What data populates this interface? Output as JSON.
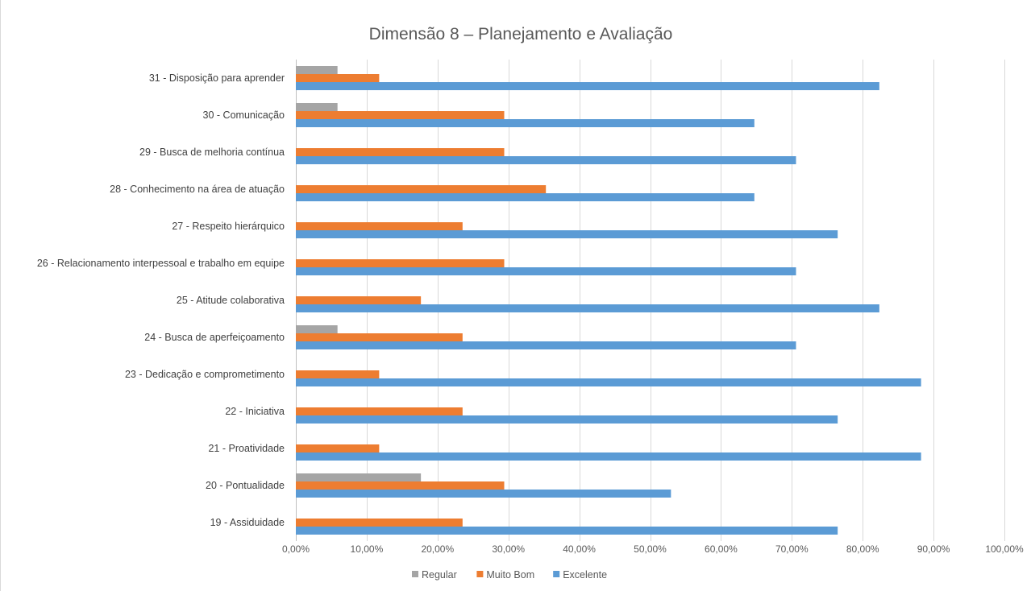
{
  "chart_data": {
    "type": "bar",
    "orientation": "horizontal",
    "title": "Dimensão 8 – Planejamento e Avaliação",
    "xlabel": "",
    "ylabel": "",
    "xlim": [
      0,
      1
    ],
    "x_ticks": [
      "0,00%",
      "10,00%",
      "20,00%",
      "30,00%",
      "40,00%",
      "50,00%",
      "60,00%",
      "70,00%",
      "80,00%",
      "90,00%",
      "100,00%"
    ],
    "grid": true,
    "legend_position": "bottom",
    "categories": [
      "31 - Disposição para aprender",
      "30 - Comunicação",
      "29 - Busca de melhoria contínua",
      "28 - Conhecimento na área de atuação",
      "27 - Respeito hierárquico",
      "26 - Relacionamento interpessoal e trabalho em equipe",
      "25 - Atitude colaborativa",
      "24 - Busca de aperfeiçoamento",
      "23 - Dedicação e comprometimento",
      "22 - Iniciativa",
      "21 - Proatividade",
      "20 - Pontualidade",
      "19 - Assiduidade"
    ],
    "series": [
      {
        "name": "Regular",
        "color": "#a5a5a5",
        "values": [
          0.0588,
          0.0588,
          0,
          0,
          0,
          0,
          0,
          0.0588,
          0,
          0,
          0,
          0.1765,
          0
        ]
      },
      {
        "name": "Muito Bom",
        "color": "#ed7d31",
        "values": [
          0.1176,
          0.2941,
          0.2941,
          0.3529,
          0.2353,
          0.2941,
          0.1765,
          0.2353,
          0.1176,
          0.2353,
          0.1176,
          0.2941,
          0.2353
        ]
      },
      {
        "name": "Excelente",
        "color": "#5b9bd5",
        "values": [
          0.8235,
          0.6471,
          0.7059,
          0.6471,
          0.7647,
          0.7059,
          0.8235,
          0.7059,
          0.8824,
          0.7647,
          0.8824,
          0.5294,
          0.7647
        ]
      }
    ]
  }
}
